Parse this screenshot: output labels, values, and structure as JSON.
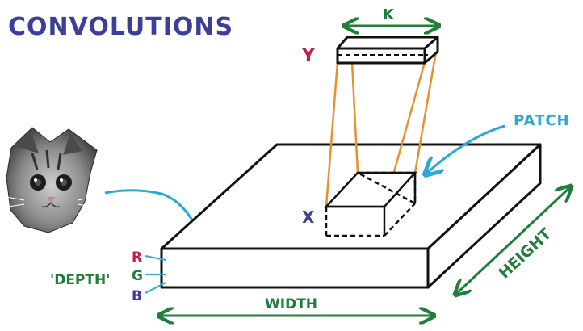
{
  "title": "CONVOLUTIONS",
  "labels": {
    "k": "K",
    "y": "Y",
    "x": "X",
    "patch": "PATCH",
    "depth": "'DEPTH'",
    "r": "R",
    "g": "G",
    "b": "B",
    "width": "WIDTH",
    "height": "HEIGHT"
  },
  "colors": {
    "title": "#3b3f9a",
    "outline": "#111111",
    "filter_lines": "#e8902e",
    "measure_arrows": "#1f7f3a",
    "pointer_arrows": "#2ba9d6",
    "y_label": "#c0203f",
    "x_label": "#3b3f9a",
    "r": "#c0203f",
    "g": "#1f7f3a",
    "b": "#3b3f9a"
  },
  "icons": {
    "kitten": "kitten-photo"
  }
}
